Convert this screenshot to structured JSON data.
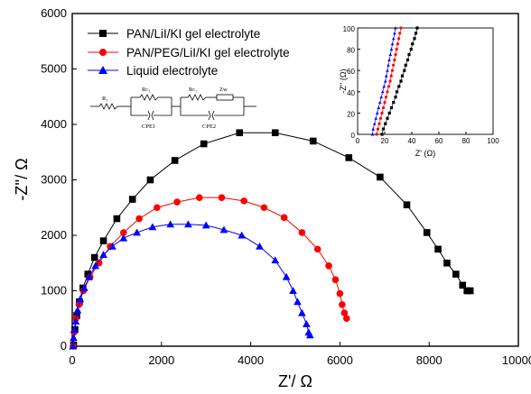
{
  "chart_data": {
    "type": "scatter",
    "title": "",
    "xlabel": "Z'/ Ω",
    "ylabel": "-Z''/ Ω",
    "xlim": [
      0,
      10000
    ],
    "ylim": [
      0,
      6000
    ],
    "xticks": [
      "0",
      "2000",
      "4000",
      "6000",
      "8000",
      "10000"
    ],
    "yticks": [
      "0",
      "1000",
      "2000",
      "3000",
      "4000",
      "5000",
      "6000"
    ],
    "grid": false,
    "legend_position": "top-left",
    "series": [
      {
        "name": "PAN/LiI/KI gel electrolyte",
        "color": "#000000",
        "marker": "square",
        "points": [
          [
            30,
            20
          ],
          [
            60,
            300
          ],
          [
            100,
            550
          ],
          [
            160,
            800
          ],
          [
            240,
            1050
          ],
          [
            350,
            1300
          ],
          [
            500,
            1600
          ],
          [
            700,
            1900
          ],
          [
            1000,
            2300
          ],
          [
            1350,
            2650
          ],
          [
            1750,
            3000
          ],
          [
            2300,
            3350
          ],
          [
            2950,
            3650
          ],
          [
            3750,
            3850
          ],
          [
            4550,
            3850
          ],
          [
            5400,
            3700
          ],
          [
            6200,
            3400
          ],
          [
            6900,
            3050
          ],
          [
            7500,
            2550
          ],
          [
            7950,
            2050
          ],
          [
            8200,
            1750
          ],
          [
            8400,
            1500
          ],
          [
            8600,
            1300
          ],
          [
            8750,
            1100
          ],
          [
            8850,
            1000
          ],
          [
            8920,
            1000
          ]
        ]
      },
      {
        "name": "PAN/PEG/LiI/KI  gel electrolyte",
        "color": "#ff0000",
        "marker": "circle",
        "points": [
          [
            20,
            0
          ],
          [
            40,
            250
          ],
          [
            80,
            500
          ],
          [
            150,
            750
          ],
          [
            250,
            1000
          ],
          [
            400,
            1250
          ],
          [
            600,
            1500
          ],
          [
            850,
            1800
          ],
          [
            1150,
            2050
          ],
          [
            1500,
            2300
          ],
          [
            1900,
            2500
          ],
          [
            2350,
            2600
          ],
          [
            2850,
            2680
          ],
          [
            3350,
            2680
          ],
          [
            3850,
            2620
          ],
          [
            4300,
            2500
          ],
          [
            4750,
            2320
          ],
          [
            5150,
            2050
          ],
          [
            5500,
            1750
          ],
          [
            5750,
            1450
          ],
          [
            5900,
            1200
          ],
          [
            6000,
            950
          ],
          [
            6050,
            750
          ],
          [
            6100,
            600
          ],
          [
            6150,
            500
          ]
        ]
      },
      {
        "name": "Liquid electrolyte",
        "color": "#0000ff",
        "marker": "triangle",
        "points": [
          [
            15,
            0
          ],
          [
            30,
            150
          ],
          [
            50,
            300
          ],
          [
            80,
            450
          ],
          [
            120,
            650
          ],
          [
            180,
            850
          ],
          [
            270,
            1050
          ],
          [
            380,
            1250
          ],
          [
            520,
            1450
          ],
          [
            700,
            1650
          ],
          [
            900,
            1800
          ],
          [
            1150,
            1950
          ],
          [
            1450,
            2050
          ],
          [
            1800,
            2150
          ],
          [
            2200,
            2200
          ],
          [
            2600,
            2200
          ],
          [
            3000,
            2180
          ],
          [
            3400,
            2100
          ],
          [
            3800,
            2000
          ],
          [
            4200,
            1800
          ],
          [
            4550,
            1550
          ],
          [
            4800,
            1250
          ],
          [
            4950,
            1000
          ],
          [
            5050,
            800
          ],
          [
            5150,
            600
          ],
          [
            5250,
            400
          ],
          [
            5300,
            250
          ],
          [
            5330,
            200
          ]
        ]
      }
    ],
    "inset": {
      "xlabel": "Z' (Ω)",
      "ylabel": "-Z'' (Ω)",
      "xlim": [
        0,
        100
      ],
      "ylim": [
        0,
        100
      ],
      "xticks": [
        "0",
        "20",
        "40",
        "60",
        "80",
        "100"
      ],
      "yticks": [
        "0",
        "20",
        "40",
        "60",
        "80",
        "100"
      ],
      "series": [
        {
          "color": "#000000",
          "marker": "square",
          "points": [
            [
              18,
              0
            ],
            [
              19,
              5
            ],
            [
              20.5,
              10
            ],
            [
              22,
              15
            ],
            [
              23.5,
              20
            ],
            [
              25,
              25
            ],
            [
              26.5,
              30
            ],
            [
              28,
              35
            ],
            [
              29,
              40
            ],
            [
              30.5,
              45
            ],
            [
              32,
              50
            ],
            [
              33,
              55
            ],
            [
              34.5,
              60
            ],
            [
              35.5,
              65
            ],
            [
              37,
              70
            ],
            [
              38,
              75
            ],
            [
              39.5,
              80
            ],
            [
              40.5,
              85
            ],
            [
              42,
              90
            ],
            [
              43,
              95
            ],
            [
              44,
              100
            ]
          ]
        },
        {
          "color": "#ff0000",
          "marker": "circle",
          "points": [
            [
              14,
              0
            ],
            [
              15,
              5
            ],
            [
              16,
              10
            ],
            [
              17,
              15
            ],
            [
              18,
              20
            ],
            [
              19,
              25
            ],
            [
              20,
              30
            ],
            [
              21,
              35
            ],
            [
              22,
              40
            ],
            [
              23,
              45
            ],
            [
              24,
              50
            ],
            [
              24.8,
              55
            ],
            [
              25.6,
              60
            ],
            [
              26.4,
              65
            ],
            [
              27.2,
              70
            ],
            [
              28,
              75
            ],
            [
              28.8,
              80
            ],
            [
              29.6,
              85
            ],
            [
              30.4,
              90
            ],
            [
              31.2,
              95
            ],
            [
              32,
              100
            ]
          ]
        },
        {
          "color": "#0000ff",
          "marker": "triangle",
          "points": [
            [
              11,
              0
            ],
            [
              11.5,
              5
            ],
            [
              12.5,
              10
            ],
            [
              13.5,
              15
            ],
            [
              14.5,
              20
            ],
            [
              15.5,
              25
            ],
            [
              16.5,
              30
            ],
            [
              17.5,
              35
            ],
            [
              18.5,
              40
            ],
            [
              19.5,
              45
            ],
            [
              20.5,
              50
            ],
            [
              21.2,
              55
            ],
            [
              22,
              60
            ],
            [
              22.7,
              65
            ],
            [
              23.4,
              70
            ],
            [
              24.2,
              75
            ],
            [
              25,
              80
            ],
            [
              25.7,
              85
            ],
            [
              26.5,
              90
            ],
            [
              27.3,
              95
            ],
            [
              28,
              100
            ]
          ]
        }
      ]
    },
    "circuit": {
      "labels": [
        "R₁",
        "Rᴄ₁",
        "CPE1",
        "Rᴄ₂",
        "Zᴡ",
        "CPE2"
      ]
    }
  }
}
